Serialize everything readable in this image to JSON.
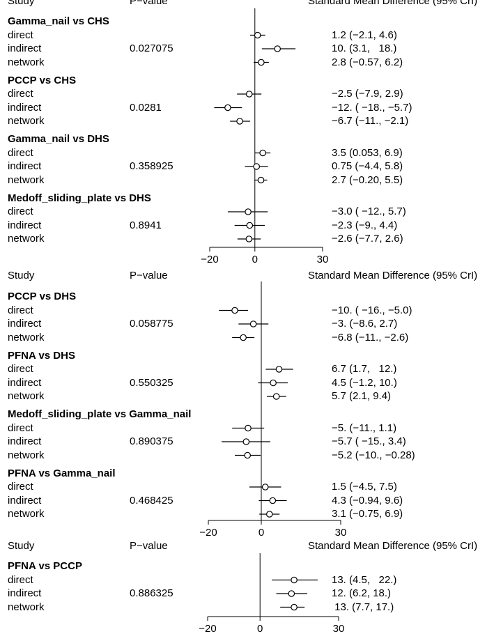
{
  "headers": {
    "study": "Study",
    "pvalue": "P−value",
    "smd": "Standard Mean Difference (95% CrI)"
  },
  "row_labels": [
    "direct",
    "indirect",
    "network"
  ],
  "chart_data": [
    {
      "type": "forest",
      "xlim": [
        -20,
        30
      ],
      "ticks": [
        -20,
        0,
        30
      ],
      "tick_labels": [
        "−20",
        "0",
        "30"
      ],
      "comparisons": [
        {
          "title": "Gamma_nail vs CHS",
          "p_value": "0.027075",
          "rows": [
            {
              "label": "direct",
              "est": 1.2,
              "lo": -2.1,
              "hi": 4.6,
              "ci_text": "1.2 (−2.1, 4.6)"
            },
            {
              "label": "indirect",
              "est": 10,
              "lo": 3.1,
              "hi": 18,
              "ci_text": "10. (3.1,   18.)"
            },
            {
              "label": "network",
              "est": 2.8,
              "lo": -0.57,
              "hi": 6.2,
              "ci_text": "2.8 (−0.57, 6.2)"
            }
          ]
        },
        {
          "title": "PCCP vs CHS",
          "p_value": "0.0281",
          "rows": [
            {
              "label": "direct",
              "est": -2.5,
              "lo": -7.9,
              "hi": 2.9,
              "ci_text": "−2.5 (−7.9, 2.9)"
            },
            {
              "label": "indirect",
              "est": -12,
              "lo": -18,
              "hi": -5.7,
              "ci_text": "−12. ( −18., −5.7)"
            },
            {
              "label": "network",
              "est": -6.7,
              "lo": -11,
              "hi": -2.1,
              "ci_text": "−6.7 (−11., −2.1)"
            }
          ]
        },
        {
          "title": "Gamma_nail vs DHS",
          "p_value": "0.358925",
          "rows": [
            {
              "label": "direct",
              "est": 3.5,
              "lo": 0.053,
              "hi": 6.9,
              "ci_text": "3.5 (0.053, 6.9)"
            },
            {
              "label": "indirect",
              "est": 0.75,
              "lo": -4.4,
              "hi": 5.8,
              "ci_text": "0.75 (−4.4, 5.8)"
            },
            {
              "label": "network",
              "est": 2.7,
              "lo": -0.2,
              "hi": 5.5,
              "ci_text": "2.7 (−0.20, 5.5)"
            }
          ]
        },
        {
          "title": "Medoff_sliding_plate vs DHS",
          "p_value": "0.8941",
          "rows": [
            {
              "label": "direct",
              "est": -3.0,
              "lo": -12,
              "hi": 5.7,
              "ci_text": "−3.0 ( −12., 5.7)"
            },
            {
              "label": "indirect",
              "est": -2.3,
              "lo": -9,
              "hi": 4.4,
              "ci_text": "−2.3 (−9., 4.4)"
            },
            {
              "label": "network",
              "est": -2.6,
              "lo": -7.7,
              "hi": 2.6,
              "ci_text": "−2.6 (−7.7, 2.6)"
            }
          ]
        }
      ]
    },
    {
      "type": "forest",
      "xlim": [
        -20,
        30
      ],
      "ticks": [
        -20,
        0,
        30
      ],
      "tick_labels": [
        "−20",
        "0",
        "30"
      ],
      "comparisons": [
        {
          "title": "PCCP vs DHS",
          "p_value": "0.058775",
          "rows": [
            {
              "label": "direct",
              "est": -10,
              "lo": -16,
              "hi": -5.0,
              "ci_text": "−10. ( −16., −5.0)"
            },
            {
              "label": "indirect",
              "est": -3,
              "lo": -8.6,
              "hi": 2.7,
              "ci_text": "−3. (−8.6, 2.7)"
            },
            {
              "label": "network",
              "est": -6.8,
              "lo": -11,
              "hi": -2.6,
              "ci_text": "−6.8 (−11., −2.6)"
            }
          ]
        },
        {
          "title": "PFNA vs DHS",
          "p_value": "0.550325",
          "rows": [
            {
              "label": "direct",
              "est": 6.7,
              "lo": 1.7,
              "hi": 12,
              "ci_text": "6.7 (1.7,   12.)"
            },
            {
              "label": "indirect",
              "est": 4.5,
              "lo": -1.2,
              "hi": 10,
              "ci_text": "4.5 (−1.2, 10.)"
            },
            {
              "label": "network",
              "est": 5.7,
              "lo": 2.1,
              "hi": 9.4,
              "ci_text": "5.7 (2.1, 9.4)"
            }
          ]
        },
        {
          "title": "Medoff_sliding_plate vs Gamma_nail",
          "p_value": "0.890375",
          "rows": [
            {
              "label": "direct",
              "est": -5,
              "lo": -11,
              "hi": 1.1,
              "ci_text": "−5. (−11., 1.1)"
            },
            {
              "label": "indirect",
              "est": -5.7,
              "lo": -15,
              "hi": 3.4,
              "ci_text": "−5.7 ( −15., 3.4)"
            },
            {
              "label": "network",
              "est": -5.2,
              "lo": -10,
              "hi": -0.28,
              "ci_text": "−5.2 (−10., −0.28)"
            }
          ]
        },
        {
          "title": "PFNA vs Gamma_nail",
          "p_value": "0.468425",
          "rows": [
            {
              "label": "direct",
              "est": 1.5,
              "lo": -4.5,
              "hi": 7.5,
              "ci_text": "1.5 (−4.5, 7.5)"
            },
            {
              "label": "indirect",
              "est": 4.3,
              "lo": -0.94,
              "hi": 9.6,
              "ci_text": "4.3 (−0.94, 9.6)"
            },
            {
              "label": "network",
              "est": 3.1,
              "lo": -0.75,
              "hi": 6.9,
              "ci_text": "3.1 (−0.75, 6.9)"
            }
          ]
        }
      ]
    },
    {
      "type": "forest",
      "xlim": [
        -20,
        30
      ],
      "ticks": [
        -20,
        0,
        30
      ],
      "tick_labels": [
        "−20",
        "0",
        "30"
      ],
      "comparisons": [
        {
          "title": "PFNA vs PCCP",
          "p_value": "0.886325",
          "rows": [
            {
              "label": "direct",
              "est": 13,
              "lo": 4.5,
              "hi": 22,
              "ci_text": "13. (4.5,   22.)"
            },
            {
              "label": "indirect",
              "est": 12,
              "lo": 6.2,
              "hi": 18,
              "ci_text": "12. (6.2, 18.)"
            },
            {
              "label": "network",
              "est": 13,
              "lo": 7.7,
              "hi": 17,
              "ci_text": " 13. (7.7, 17.)"
            }
          ]
        }
      ]
    }
  ]
}
